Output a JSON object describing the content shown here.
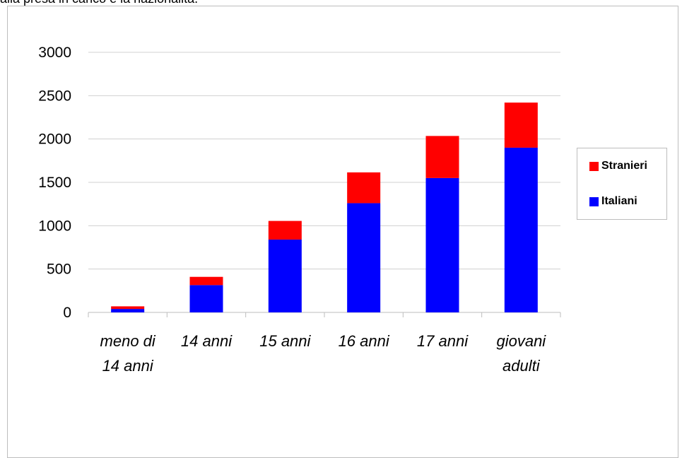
{
  "caption": "alla presa in carico e la nazionalità.",
  "chart_data": {
    "type": "bar",
    "stacked": true,
    "title": "",
    "xlabel": "",
    "ylabel": "",
    "categories": [
      [
        "meno di",
        "14 anni"
      ],
      [
        "14 anni"
      ],
      [
        "15 anni"
      ],
      [
        "16 anni"
      ],
      [
        "17 anni"
      ],
      [
        "giovani",
        "adulti"
      ]
    ],
    "series": [
      {
        "name": "Italiani",
        "color": "#0000ff",
        "values": [
          40,
          315,
          840,
          1260,
          1550,
          1900
        ]
      },
      {
        "name": "Stranieri",
        "color": "#ff0000",
        "values": [
          30,
          95,
          215,
          355,
          485,
          520
        ]
      }
    ],
    "ylim": [
      0,
      3000
    ],
    "yticks": [
      0,
      500,
      1000,
      1500,
      2000,
      2500,
      3000
    ],
    "grid": true,
    "legend": {
      "placement": "right",
      "order": [
        "Stranieri",
        "Italiani"
      ]
    }
  }
}
